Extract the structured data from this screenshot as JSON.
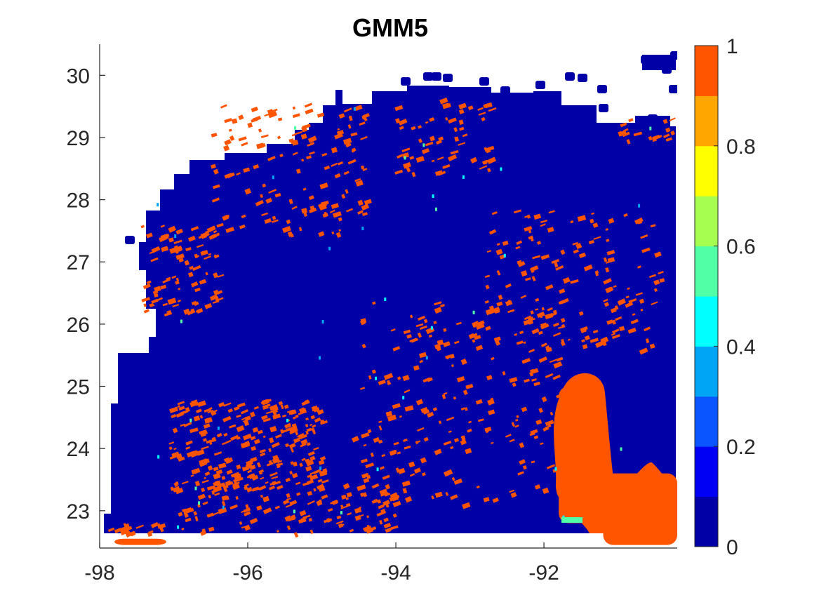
{
  "chart_data": {
    "type": "heatmap",
    "title": "GMM5",
    "xlabel": "",
    "ylabel": "",
    "xlim": [
      -98.0,
      -90.2
    ],
    "ylim": [
      22.4,
      30.5
    ],
    "xticks": [
      -98,
      -96,
      -94,
      -92
    ],
    "xtick_labels": [
      "-98",
      "-96",
      "-94",
      "-92"
    ],
    "yticks": [
      23,
      24,
      25,
      26,
      27,
      28,
      29,
      30
    ],
    "ytick_labels": [
      "23",
      "24",
      "25",
      "26",
      "27",
      "28",
      "29",
      "30"
    ],
    "grid": false,
    "colorbar": {
      "range": [
        0,
        1
      ],
      "levels": 10,
      "ticks": [
        0,
        0.2,
        0.4,
        0.6,
        0.8,
        1
      ],
      "tick_labels": [
        "0",
        "0.2",
        "0.4",
        "0.6",
        "0.8",
        "1"
      ],
      "colors": [
        "#0000a6",
        "#0000f5",
        "#0a55ff",
        "#00a6f5",
        "#00ffff",
        "#50ffa6",
        "#a6ff50",
        "#ffff00",
        "#ffa600",
        "#ff5500"
      ]
    },
    "background_value": 0,
    "background_color": "#0000a6",
    "high_value_color": "#ff5500",
    "high_value_regions": [
      {
        "lon": [
          -91.8,
          -91.3
        ],
        "lat": [
          22.8,
          25.0
        ],
        "value": 1
      },
      {
        "lon": [
          -91.2,
          -90.2
        ],
        "lat": [
          22.45,
          23.6
        ],
        "value": 1
      },
      {
        "lon": [
          -97.8,
          -97.1
        ],
        "lat": [
          22.45,
          22.55
        ],
        "value": 1
      }
    ]
  }
}
